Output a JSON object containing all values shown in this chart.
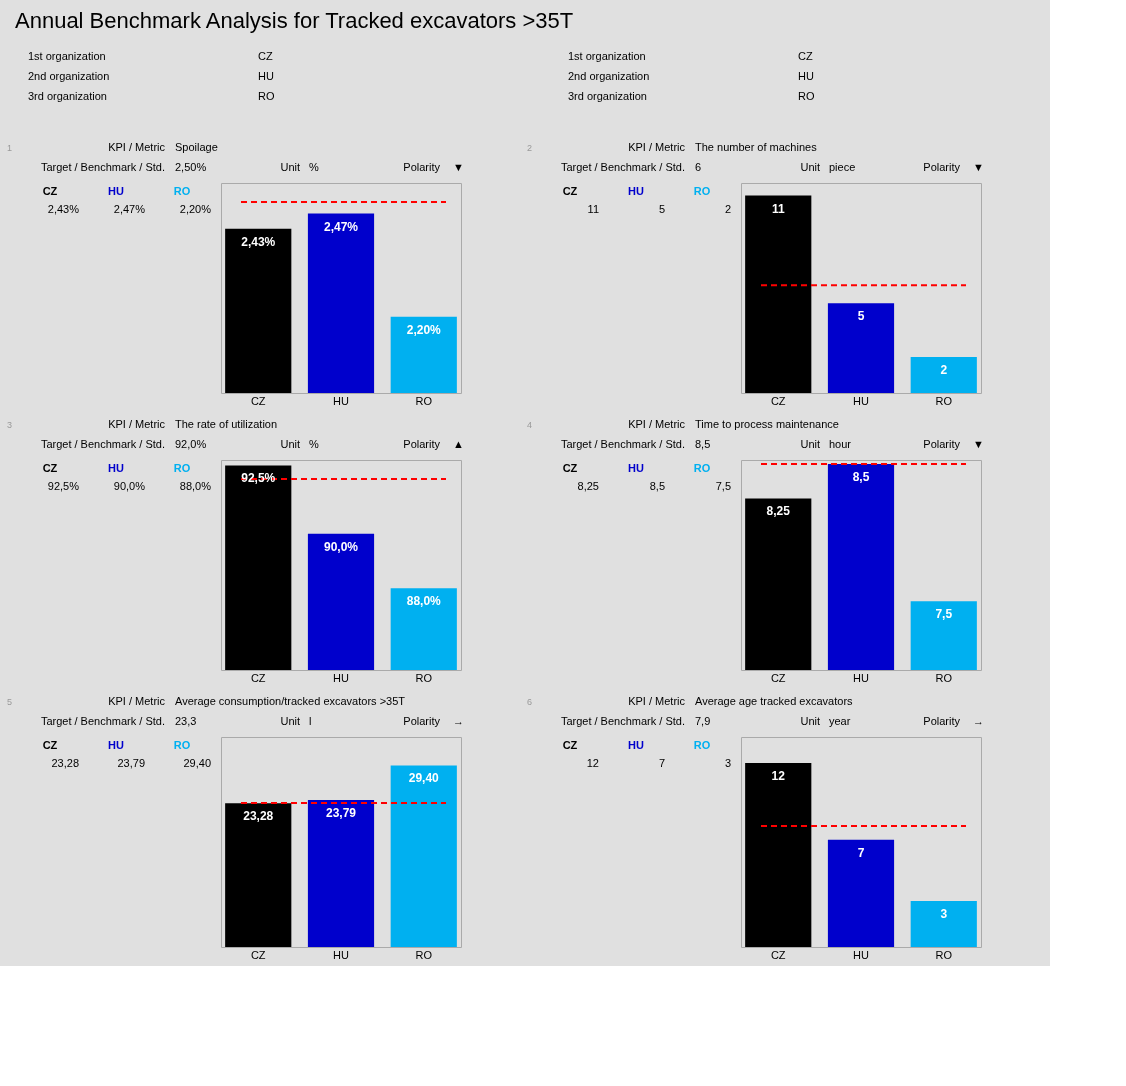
{
  "chart_data": [
    {
      "type": "other",
      "title": "Annual Benchmark Analysis for Tracked excavators  >35T",
      "annotations": [
        "1st organization",
        "CZ",
        "2nd organization",
        "HU",
        "3rd organization",
        "RO"
      ]
    },
    {
      "type": "other",
      "annotations": [
        "1st organization",
        "CZ",
        "2nd organization",
        "HU",
        "3rd organization",
        "RO"
      ]
    },
    {
      "type": "bar",
      "title": "Spoilage",
      "categories": [
        "CZ",
        "HU",
        "RO"
      ],
      "colors": [
        "#000000",
        "#0000cc",
        "#00b0f0"
      ],
      "values": [
        2.43,
        2.47,
        2.2
      ],
      "value_labels": [
        "2,43%",
        "2,47%",
        "2,20%"
      ],
      "ylim": [
        2.0,
        2.55
      ],
      "tick_labels": "x",
      "ref_lines": [
        {
          "axis": "y",
          "value": 2.5,
          "color": "#ff0000",
          "line_style": "dashed"
        }
      ],
      "annotations": [
        "1",
        "KPI / Metric",
        "Target / Benchmark / Std.",
        "2,50%",
        "Unit",
        "%",
        "Polarity",
        "▼"
      ]
    },
    {
      "type": "bar",
      "title": "The number of machines",
      "categories": [
        "CZ",
        "HU",
        "RO"
      ],
      "colors": [
        "#000000",
        "#0000cc",
        "#00b0f0"
      ],
      "values": [
        11,
        5,
        2
      ],
      "value_labels": [
        "11",
        "5",
        "2"
      ],
      "ylim": [
        0,
        11.7
      ],
      "tick_labels": "x",
      "ref_lines": [
        {
          "axis": "y",
          "value": 6,
          "color": "#ff0000",
          "line_style": "dashed"
        }
      ],
      "annotations": [
        "2",
        "KPI / Metric",
        "Target / Benchmark / Std.",
        "6",
        "Unit",
        "piece",
        "Polarity",
        "▼"
      ]
    },
    {
      "type": "bar",
      "title": "The rate of utilization",
      "categories": [
        "CZ",
        "HU",
        "RO"
      ],
      "colors": [
        "#000000",
        "#0000cc",
        "#00b0f0"
      ],
      "values": [
        92.5,
        90.0,
        88.0
      ],
      "value_labels": [
        "92,5%",
        "90,0%",
        "88,0%"
      ],
      "ylim": [
        85,
        92.7
      ],
      "tick_labels": "x",
      "ref_lines": [
        {
          "axis": "y",
          "value": 92.0,
          "color": "#ff0000",
          "line_style": "dashed"
        }
      ],
      "annotations": [
        "3",
        "KPI / Metric",
        "Target / Benchmark / Std.",
        "92,0%",
        "Unit",
        "%",
        "Polarity",
        "▲"
      ]
    },
    {
      "type": "bar",
      "title": "Time to process maintenance",
      "categories": [
        "CZ",
        "HU",
        "RO"
      ],
      "colors": [
        "#000000",
        "#0000cc",
        "#00b0f0"
      ],
      "values": [
        8.25,
        8.5,
        7.5
      ],
      "value_labels": [
        "8,25",
        "8,5",
        "7,5"
      ],
      "ylim": [
        7.0,
        8.53
      ],
      "tick_labels": "x",
      "ref_lines": [
        {
          "axis": "y",
          "value": 8.5,
          "color": "#ff0000",
          "line_style": "dashed"
        }
      ],
      "annotations": [
        "4",
        "KPI / Metric",
        "Target / Benchmark / Std.",
        "8,5",
        "Unit",
        "hour",
        "Polarity",
        "▼"
      ]
    },
    {
      "type": "bar",
      "title": "Average consumption/tracked excavators >35T",
      "categories": [
        "CZ",
        "HU",
        "RO"
      ],
      "colors": [
        "#000000",
        "#0000cc",
        "#00b0f0"
      ],
      "values": [
        23.28,
        23.79,
        29.4
      ],
      "value_labels": [
        "23,28",
        "23,79",
        "29,40"
      ],
      "ylim": [
        0,
        34
      ],
      "tick_labels": "x",
      "ref_lines": [
        {
          "axis": "y",
          "value": 23.3,
          "color": "#ff0000",
          "line_style": "dashed"
        }
      ],
      "annotations": [
        "5",
        "KPI / Metric",
        "Target / Benchmark / Std.",
        "23,3",
        "Unit",
        "l",
        "Polarity",
        "→"
      ]
    },
    {
      "type": "bar",
      "title": "Average age tracked excavators",
      "categories": [
        "CZ",
        "HU",
        "RO"
      ],
      "colors": [
        "#000000",
        "#0000cc",
        "#00b0f0"
      ],
      "values": [
        12,
        7,
        3
      ],
      "value_labels": [
        "12",
        "7",
        "3"
      ],
      "ylim": [
        0,
        13.7
      ],
      "tick_labels": "x",
      "ref_lines": [
        {
          "axis": "y",
          "value": 7.9,
          "color": "#ff0000",
          "line_style": "dashed"
        }
      ],
      "annotations": [
        "6",
        "KPI / Metric",
        "Target / Benchmark / Std.",
        "7,9",
        "Unit",
        "year",
        "Polarity",
        "→"
      ]
    }
  ]
}
